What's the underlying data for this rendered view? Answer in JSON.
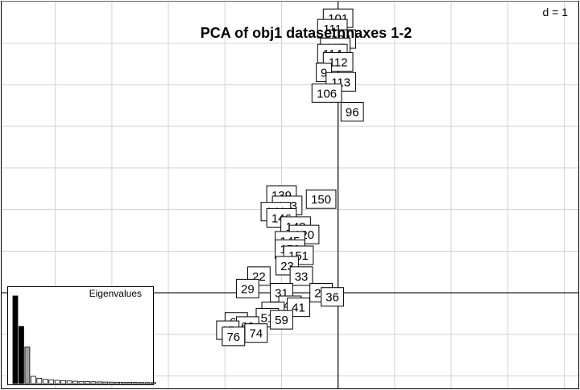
{
  "chart_data": {
    "type": "scatter",
    "title": "PCA of obj1 datasetnnaxes 1-2",
    "scale_label": "d = 1",
    "grid": true,
    "xlim": [
      -5.95,
      4.25
    ],
    "ylim": [
      -2.3,
      7.0
    ],
    "origin_lines": true,
    "labels": [
      {
        "label": "101",
        "x": 0.0,
        "y": 6.6
      },
      {
        "label": "111",
        "x": -0.1,
        "y": 6.35
      },
      {
        "label": "104",
        "x": 0.05,
        "y": 6.1
      },
      {
        "label": "117",
        "x": -0.05,
        "y": 5.9
      },
      {
        "label": "114",
        "x": -0.1,
        "y": 5.75
      },
      {
        "label": "112",
        "x": 0.0,
        "y": 5.55
      },
      {
        "label": "9",
        "x": -0.25,
        "y": 5.3
      },
      {
        "label": "113",
        "x": 0.05,
        "y": 5.07
      },
      {
        "label": "106",
        "x": -0.2,
        "y": 4.8
      },
      {
        "label": "96",
        "x": 0.25,
        "y": 4.35
      },
      {
        "label": "139",
        "x": -1.0,
        "y": 2.35
      },
      {
        "label": "150",
        "x": -0.3,
        "y": 2.25
      },
      {
        "label": "143",
        "x": -0.9,
        "y": 2.1
      },
      {
        "label": "149",
        "x": -1.1,
        "y": 1.95
      },
      {
        "label": "146",
        "x": -1.0,
        "y": 1.8
      },
      {
        "label": "148",
        "x": -0.75,
        "y": 1.6
      },
      {
        "label": "120",
        "x": -0.6,
        "y": 1.4
      },
      {
        "label": "145",
        "x": -0.85,
        "y": 1.25
      },
      {
        "label": "152",
        "x": -0.85,
        "y": 1.05
      },
      {
        "label": "151",
        "x": -0.7,
        "y": 0.9
      },
      {
        "label": "23",
        "x": -0.9,
        "y": 0.65
      },
      {
        "label": "22",
        "x": -1.4,
        "y": 0.4
      },
      {
        "label": "33",
        "x": -0.65,
        "y": 0.4
      },
      {
        "label": "29",
        "x": -1.6,
        "y": 0.1
      },
      {
        "label": "31",
        "x": -1.0,
        "y": 0.0
      },
      {
        "label": "26",
        "x": -0.3,
        "y": 0.0
      },
      {
        "label": "36",
        "x": -0.1,
        "y": -0.1
      },
      {
        "label": "43",
        "x": -0.85,
        "y": -0.3
      },
      {
        "label": "41",
        "x": -0.7,
        "y": -0.35
      },
      {
        "label": "56",
        "x": -1.15,
        "y": -0.45
      },
      {
        "label": "51",
        "x": -1.25,
        "y": -0.6
      },
      {
        "label": "59",
        "x": -1.0,
        "y": -0.65
      },
      {
        "label": "62",
        "x": -1.8,
        "y": -0.7
      },
      {
        "label": "69",
        "x": -1.6,
        "y": -0.8
      },
      {
        "label": "67",
        "x": -1.95,
        "y": -0.9
      },
      {
        "label": "74",
        "x": -1.45,
        "y": -0.97
      },
      {
        "label": "76",
        "x": -1.85,
        "y": -1.05
      }
    ],
    "eigenvalues": {
      "title": "Eigenvalues",
      "values": [
        11.5,
        7.5,
        4.8,
        0.95,
        0.7,
        0.55,
        0.48,
        0.42,
        0.38,
        0.34,
        0.31,
        0.28,
        0.26,
        0.24,
        0.22,
        0.2,
        0.19,
        0.18,
        0.17,
        0.16,
        0.15,
        0.14,
        0.13,
        0.12
      ],
      "axes_shown": 2
    }
  }
}
